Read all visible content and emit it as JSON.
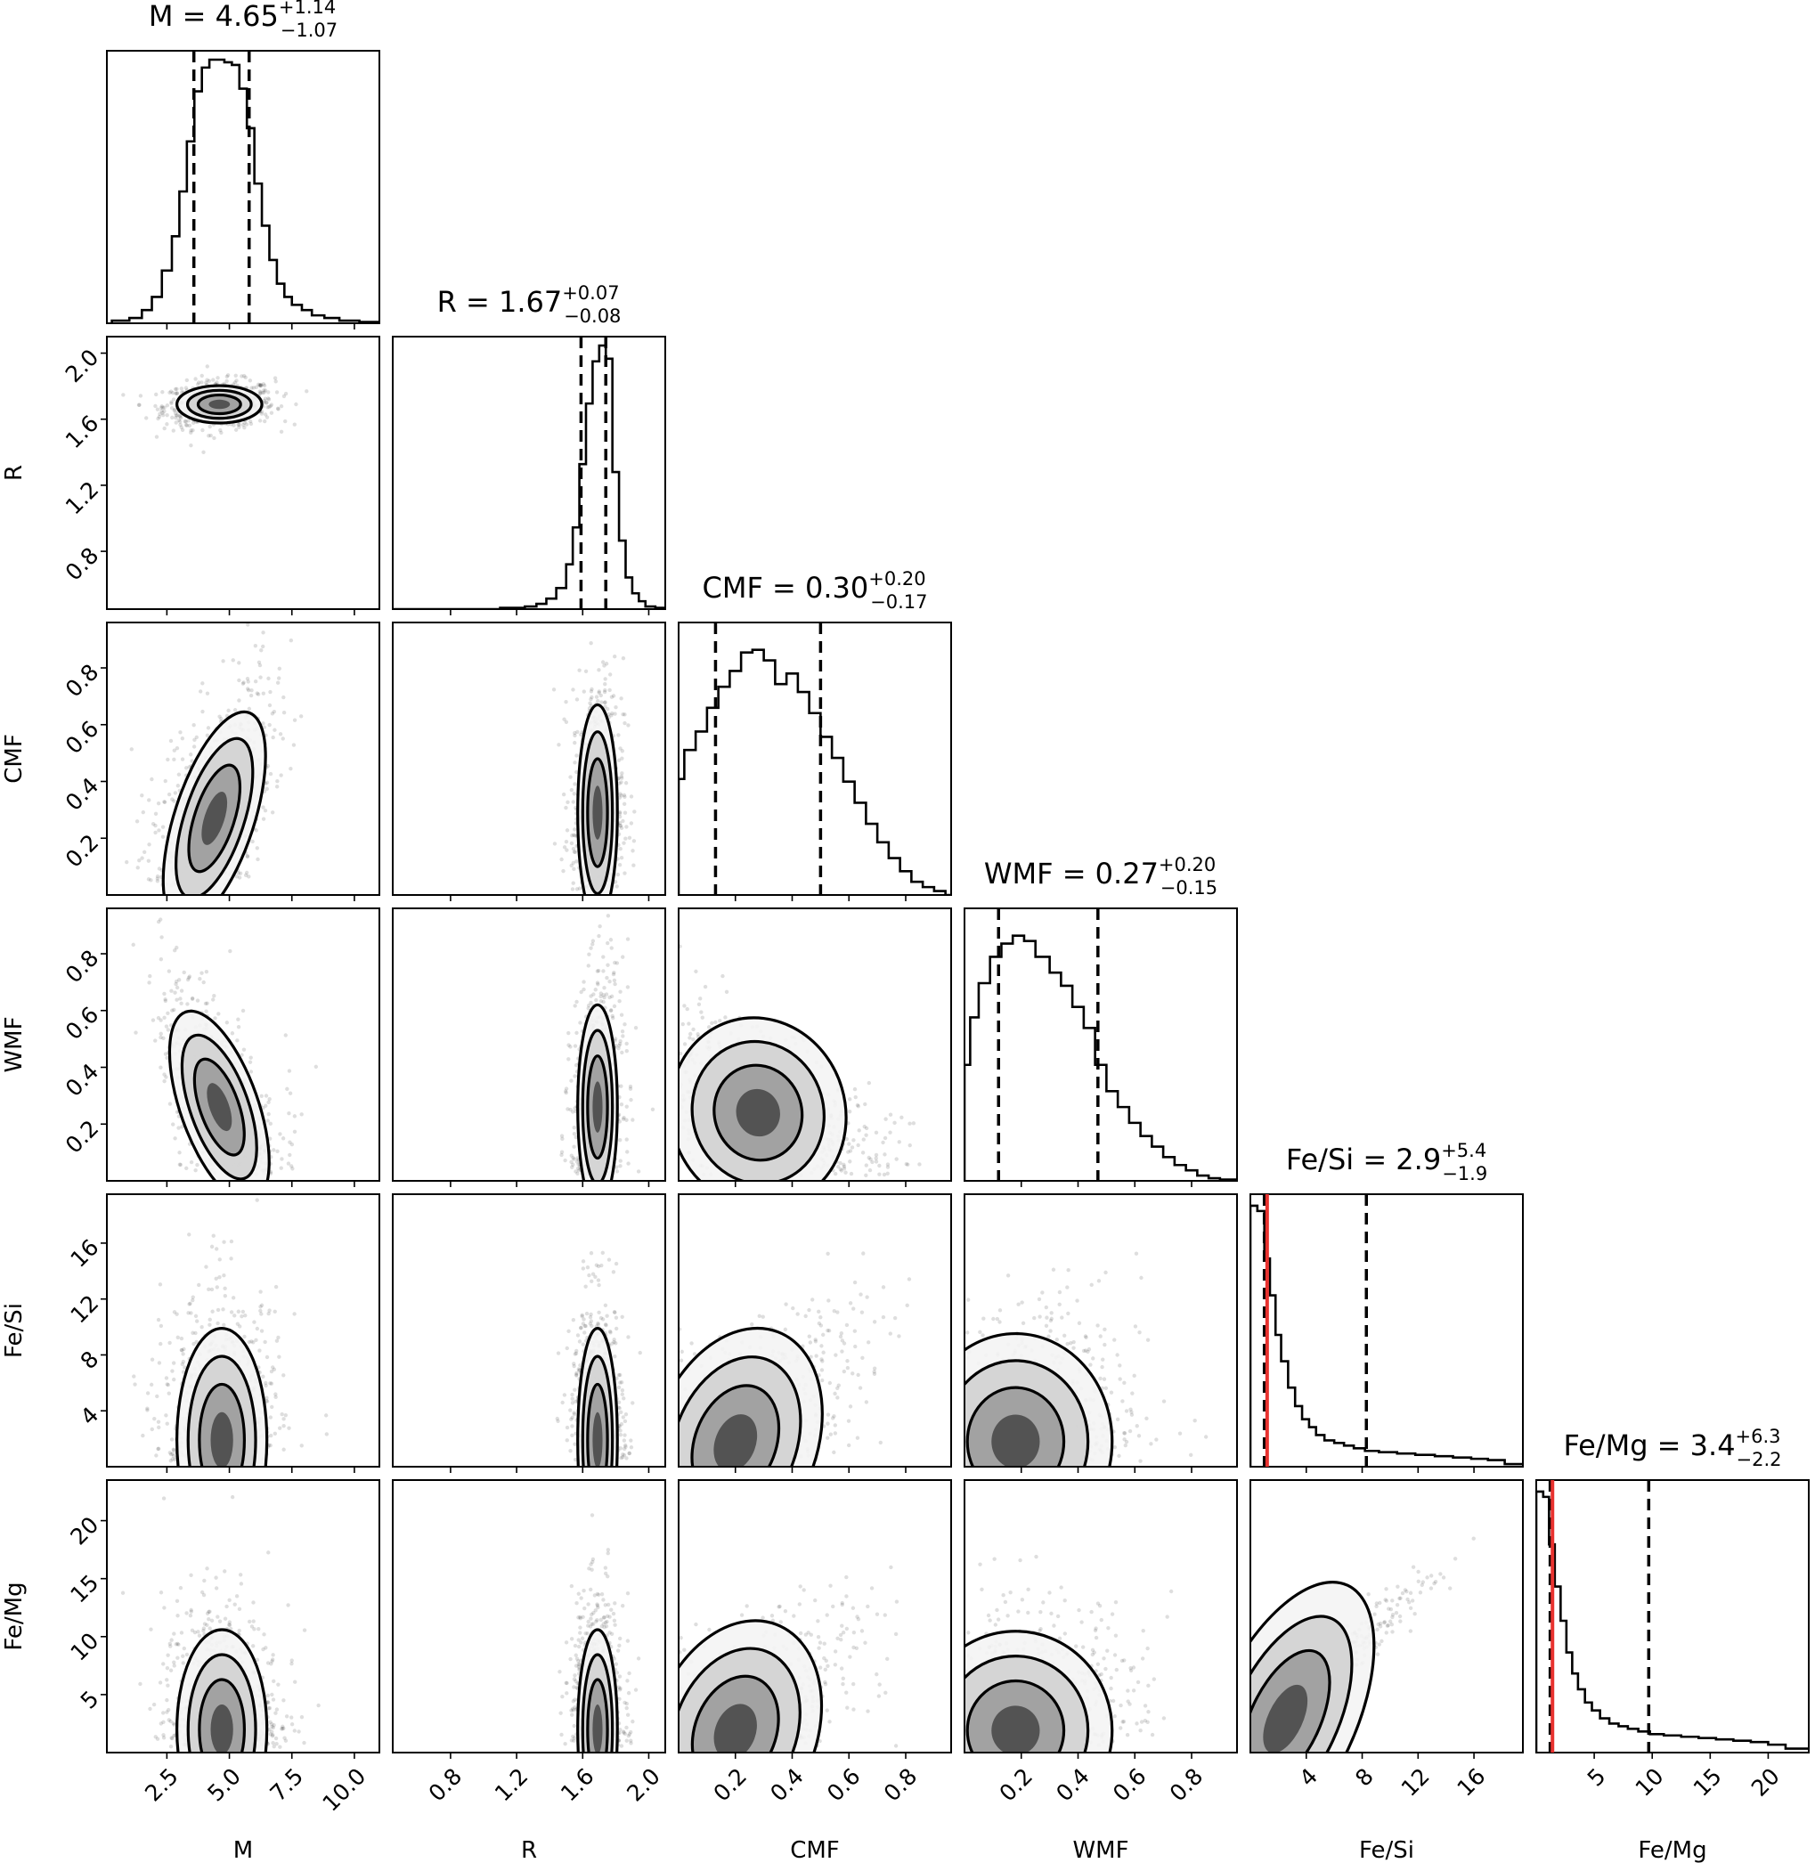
{
  "chart_data": {
    "type": "corner",
    "parameters": [
      "M",
      "R",
      "CMF",
      "WMF",
      "Fe/Si",
      "Fe/Mg"
    ],
    "axis_labels": [
      "M",
      "R",
      "CMF",
      "WMF",
      "Fe/Si",
      "Fe/Mg"
    ],
    "ranges": [
      [
        0.1,
        11.0
      ],
      [
        0.45,
        2.1
      ],
      [
        0.0,
        0.96
      ],
      [
        0.0,
        0.96
      ],
      [
        0.0,
        19.5
      ],
      [
        0.0,
        23.5
      ]
    ],
    "ticks": [
      [
        2.5,
        5.0,
        7.5,
        10.0
      ],
      [
        0.8,
        1.2,
        1.6,
        2.0
      ],
      [
        0.2,
        0.4,
        0.6,
        0.8
      ],
      [
        0.2,
        0.4,
        0.6,
        0.8
      ],
      [
        4,
        8,
        12,
        16
      ],
      [
        5,
        10,
        15,
        20
      ]
    ],
    "tick_labels": [
      [
        "2.5",
        "5.0",
        "7.5",
        "10.0"
      ],
      [
        "0.8",
        "1.2",
        "1.6",
        "2.0"
      ],
      [
        "0.2",
        "0.4",
        "0.6",
        "0.8"
      ],
      [
        "0.2",
        "0.4",
        "0.6",
        "0.8"
      ],
      [
        "4",
        "8",
        "12",
        "16"
      ],
      [
        "5",
        "10",
        "15",
        "20"
      ]
    ],
    "titles": [
      {
        "name": "M",
        "value": "4.65",
        "plus": "+1.14",
        "minus": "−1.07"
      },
      {
        "name": "R",
        "value": "1.67",
        "plus": "+0.07",
        "minus": "−0.08"
      },
      {
        "name": "CMF",
        "value": "0.30",
        "plus": "+0.20",
        "minus": "−0.17"
      },
      {
        "name": "WMF",
        "value": "0.27",
        "plus": "+0.20",
        "minus": "−0.15"
      },
      {
        "name": "Fe/Si",
        "value": "2.9",
        "plus": "+5.4",
        "minus": "−1.9"
      },
      {
        "name": "Fe/Mg",
        "value": "3.4",
        "plus": "+6.3",
        "minus": "−2.2"
      }
    ],
    "medians": [
      4.65,
      1.67,
      0.3,
      0.27,
      2.9,
      3.4
    ],
    "quantile_lines": [
      [
        3.58,
        5.79
      ],
      [
        1.59,
        1.74
      ],
      [
        0.13,
        0.5
      ],
      [
        0.12,
        0.47
      ],
      [
        1.0,
        8.3
      ],
      [
        1.2,
        9.7
      ]
    ],
    "truth_lines": [
      null,
      null,
      null,
      null,
      1.2,
      1.4
    ],
    "truth_color": "#e8322f",
    "histograms": [
      {
        "bins": [
          [
            0.3,
            0.01
          ],
          [
            1.0,
            0.02
          ],
          [
            1.5,
            0.05
          ],
          [
            1.9,
            0.1
          ],
          [
            2.3,
            0.2
          ],
          [
            2.7,
            0.33
          ],
          [
            3.0,
            0.5
          ],
          [
            3.3,
            0.69
          ],
          [
            3.6,
            0.88
          ],
          [
            3.9,
            0.97
          ],
          [
            4.2,
            1.0
          ],
          [
            4.5,
            1.0
          ],
          [
            4.8,
            0.99
          ],
          [
            5.1,
            0.98
          ],
          [
            5.4,
            0.89
          ],
          [
            5.7,
            0.74
          ],
          [
            6.0,
            0.53
          ],
          [
            6.3,
            0.37
          ],
          [
            6.6,
            0.24
          ],
          [
            6.9,
            0.15
          ],
          [
            7.2,
            0.1
          ],
          [
            7.5,
            0.07
          ],
          [
            7.9,
            0.05
          ],
          [
            8.3,
            0.03
          ],
          [
            8.8,
            0.02
          ],
          [
            9.4,
            0.01
          ],
          [
            10.2,
            0.005
          ]
        ],
        "end": 11.0
      },
      {
        "bins": [
          [
            0.45,
            0.0
          ],
          [
            1.1,
            0.005
          ],
          [
            1.25,
            0.01
          ],
          [
            1.32,
            0.02
          ],
          [
            1.38,
            0.04
          ],
          [
            1.44,
            0.08
          ],
          [
            1.5,
            0.17
          ],
          [
            1.54,
            0.31
          ],
          [
            1.58,
            0.55
          ],
          [
            1.62,
            0.78
          ],
          [
            1.66,
            0.94
          ],
          [
            1.7,
            1.0
          ],
          [
            1.74,
            0.95
          ],
          [
            1.78,
            0.52
          ],
          [
            1.82,
            0.26
          ],
          [
            1.86,
            0.12
          ],
          [
            1.9,
            0.06
          ],
          [
            1.94,
            0.03
          ],
          [
            1.98,
            0.01
          ],
          [
            2.04,
            0.005
          ]
        ],
        "end": 2.1
      },
      {
        "bins": [
          [
            0.0,
            0.44
          ],
          [
            0.02,
            0.55
          ],
          [
            0.06,
            0.62
          ],
          [
            0.1,
            0.71
          ],
          [
            0.14,
            0.79
          ],
          [
            0.18,
            0.85
          ],
          [
            0.22,
            0.92
          ],
          [
            0.26,
            0.93
          ],
          [
            0.3,
            0.89
          ],
          [
            0.34,
            0.8
          ],
          [
            0.38,
            0.84
          ],
          [
            0.42,
            0.77
          ],
          [
            0.46,
            0.69
          ],
          [
            0.5,
            0.6
          ],
          [
            0.54,
            0.52
          ],
          [
            0.58,
            0.43
          ],
          [
            0.62,
            0.35
          ],
          [
            0.66,
            0.27
          ],
          [
            0.7,
            0.2
          ],
          [
            0.74,
            0.14
          ],
          [
            0.78,
            0.09
          ],
          [
            0.82,
            0.05
          ],
          [
            0.86,
            0.03
          ],
          [
            0.9,
            0.015
          ],
          [
            0.94,
            0.0
          ]
        ],
        "end": 0.96
      },
      {
        "bins": [
          [
            0.0,
            0.44
          ],
          [
            0.02,
            0.62
          ],
          [
            0.05,
            0.75
          ],
          [
            0.09,
            0.85
          ],
          [
            0.13,
            0.9
          ],
          [
            0.17,
            0.93
          ],
          [
            0.21,
            0.91
          ],
          [
            0.25,
            0.85
          ],
          [
            0.3,
            0.79
          ],
          [
            0.34,
            0.74
          ],
          [
            0.38,
            0.66
          ],
          [
            0.42,
            0.58
          ],
          [
            0.46,
            0.44
          ],
          [
            0.5,
            0.34
          ],
          [
            0.54,
            0.28
          ],
          [
            0.58,
            0.22
          ],
          [
            0.62,
            0.17
          ],
          [
            0.66,
            0.13
          ],
          [
            0.7,
            0.09
          ],
          [
            0.74,
            0.06
          ],
          [
            0.78,
            0.04
          ],
          [
            0.82,
            0.02
          ],
          [
            0.86,
            0.01
          ],
          [
            0.9,
            0.005
          ]
        ],
        "end": 0.96
      },
      {
        "bins": [
          [
            0.0,
            0.99
          ],
          [
            0.5,
            0.97
          ],
          [
            1.0,
            0.79
          ],
          [
            1.4,
            0.65
          ],
          [
            1.8,
            0.5
          ],
          [
            2.2,
            0.4
          ],
          [
            2.7,
            0.3
          ],
          [
            3.2,
            0.23
          ],
          [
            3.7,
            0.18
          ],
          [
            4.2,
            0.15
          ],
          [
            4.7,
            0.12
          ],
          [
            5.3,
            0.1
          ],
          [
            6.0,
            0.09
          ],
          [
            6.7,
            0.08
          ],
          [
            7.4,
            0.07
          ],
          [
            8.2,
            0.06
          ],
          [
            9.2,
            0.055
          ],
          [
            10.5,
            0.05
          ],
          [
            11.8,
            0.045
          ],
          [
            13.2,
            0.04
          ],
          [
            14.5,
            0.035
          ],
          [
            15.8,
            0.03
          ],
          [
            17.0,
            0.025
          ],
          [
            18.2,
            0.01
          ]
        ],
        "end": 19.5
      },
      {
        "bins": [
          [
            0.0,
            0.99
          ],
          [
            0.6,
            0.97
          ],
          [
            1.1,
            0.79
          ],
          [
            1.6,
            0.63
          ],
          [
            2.1,
            0.5
          ],
          [
            2.6,
            0.38
          ],
          [
            3.1,
            0.3
          ],
          [
            3.6,
            0.24
          ],
          [
            4.2,
            0.19
          ],
          [
            4.8,
            0.16
          ],
          [
            5.5,
            0.13
          ],
          [
            6.3,
            0.11
          ],
          [
            7.1,
            0.1
          ],
          [
            7.9,
            0.09
          ],
          [
            8.8,
            0.08
          ],
          [
            9.8,
            0.07
          ],
          [
            11.0,
            0.065
          ],
          [
            12.5,
            0.06
          ],
          [
            14.0,
            0.055
          ],
          [
            15.5,
            0.05
          ],
          [
            17.0,
            0.045
          ],
          [
            18.5,
            0.04
          ],
          [
            20.0,
            0.03
          ],
          [
            21.5,
            0.015
          ]
        ],
        "end": 23.5
      }
    ],
    "density_pairs": [
      {
        "row": 1,
        "col": 0,
        "center": [
          4.6,
          1.69
        ],
        "sigma": [
          0.85,
          0.055
        ],
        "rho": 0.1
      },
      {
        "row": 2,
        "col": 0,
        "center": [
          4.4,
          0.27
        ],
        "sigma": [
          0.9,
          0.19
        ],
        "rho": 0.6
      },
      {
        "row": 2,
        "col": 1,
        "center": [
          1.69,
          0.29
        ],
        "sigma": [
          0.06,
          0.19
        ],
        "rho": 0.1
      },
      {
        "row": 3,
        "col": 0,
        "center": [
          4.6,
          0.26
        ],
        "sigma": [
          0.9,
          0.17
        ],
        "rho": -0.65
      },
      {
        "row": 3,
        "col": 1,
        "center": [
          1.69,
          0.26
        ],
        "sigma": [
          0.06,
          0.18
        ],
        "rho": 0.2
      },
      {
        "row": 3,
        "col": 2,
        "center": [
          0.28,
          0.24
        ],
        "sigma": [
          0.17,
          0.14
        ],
        "rho": -0.55
      },
      {
        "row": 4,
        "col": 0,
        "center": [
          4.7,
          1.9
        ],
        "sigma": [
          0.9,
          4.0
        ],
        "rho": 0.0
      },
      {
        "row": 4,
        "col": 1,
        "center": [
          1.69,
          1.9
        ],
        "sigma": [
          0.06,
          4.0
        ],
        "rho": 0.0
      },
      {
        "row": 4,
        "col": 2,
        "center": [
          0.2,
          1.7
        ],
        "sigma": [
          0.17,
          3.5
        ],
        "rho": 0.7
      },
      {
        "row": 4,
        "col": 3,
        "center": [
          0.18,
          1.8
        ],
        "sigma": [
          0.17,
          3.8
        ],
        "rho": 0.2
      },
      {
        "row": 5,
        "col": 0,
        "center": [
          4.7,
          2.0
        ],
        "sigma": [
          0.9,
          4.3
        ],
        "rho": 0.0
      },
      {
        "row": 5,
        "col": 1,
        "center": [
          1.69,
          2.0
        ],
        "sigma": [
          0.06,
          4.3
        ],
        "rho": 0.0
      },
      {
        "row": 5,
        "col": 2,
        "center": [
          0.2,
          1.8
        ],
        "sigma": [
          0.17,
          4.0
        ],
        "rho": 0.7
      },
      {
        "row": 5,
        "col": 3,
        "center": [
          0.18,
          1.9
        ],
        "sigma": [
          0.17,
          4.2
        ],
        "rho": 0.2
      },
      {
        "row": 5,
        "col": 4,
        "center": [
          2.5,
          2.9
        ],
        "sigma": [
          3.8,
          4.5
        ],
        "rho": 0.98
      }
    ]
  }
}
